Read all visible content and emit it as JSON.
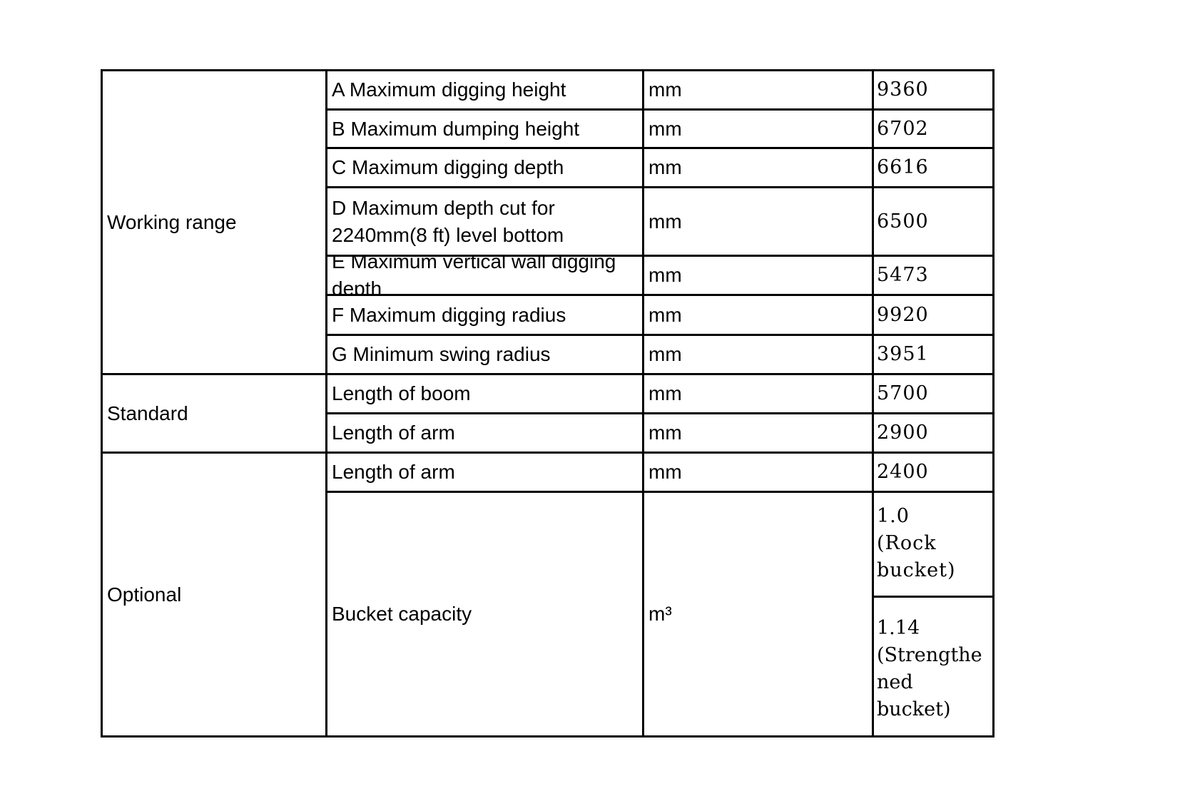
{
  "groups": [
    {
      "label": "Working range",
      "rows": [
        {
          "item": "A Maximum digging height",
          "unit": "mm",
          "value": "9360"
        },
        {
          "item": "B Maximum dumping height",
          "unit": "mm",
          "value": "6702"
        },
        {
          "item": "C Maximum digging depth",
          "unit": "mm",
          "value": "6616"
        },
        {
          "item": "D Maximum depth cut for 2240mm(8 ft) level bottom",
          "unit": "mm",
          "value": "6500"
        },
        {
          "item": "E Maximum vertical wall digging depth",
          "unit": "mm",
          "value": "5473"
        },
        {
          "item": "F Maximum digging radius",
          "unit": "mm",
          "value": "9920"
        },
        {
          "item": "G Minimum swing radius",
          "unit": "mm",
          "value": "3951"
        }
      ]
    },
    {
      "label": "Standard",
      "rows": [
        {
          "item": "Length of boom",
          "unit": "mm",
          "value": "5700"
        },
        {
          "item": "Length of arm",
          "unit": "mm",
          "value": "2900"
        }
      ]
    },
    {
      "label": "Optional",
      "rows": [
        {
          "item": "Length of arm",
          "unit": "mm",
          "value": "2400"
        },
        {
          "item": "Bucket capacity",
          "unit": "m³",
          "values": [
            "1.0\n(Rock\nbucket)",
            "1.14\n(Strengthe\nned\n  bucket)"
          ]
        }
      ]
    }
  ]
}
